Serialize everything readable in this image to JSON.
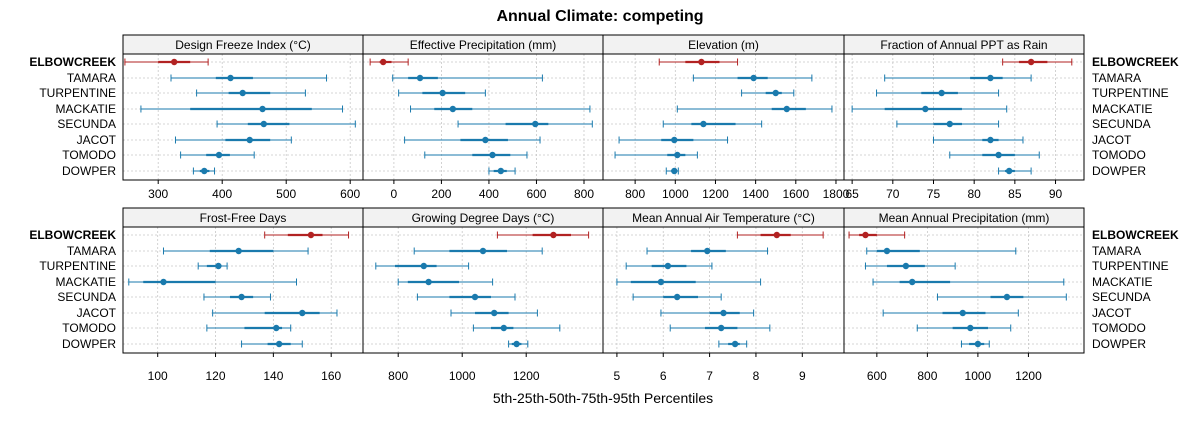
{
  "chart_data": {
    "type": "percentile-interval",
    "title": "Annual Climate: competing",
    "xlabel": "5th-25th-50th-75th-95th Percentiles",
    "sites": [
      "ELBOWCREEK",
      "TAMARA",
      "TURPENTINE",
      "MACKATIE",
      "SECUNDA",
      "JACOT",
      "TOMODO",
      "DOWPER"
    ],
    "highlight_site": "ELBOWCREEK",
    "highlight_color": "#b22222",
    "series_color": "#1a7aad",
    "panels": [
      {
        "title": "Design Freeze Index (°C)",
        "xlim": [
          245,
          620
        ],
        "ticks": [
          300,
          400,
          500,
          600
        ],
        "tick_labels": [
          "300",
          "400",
          "500",
          "600"
        ],
        "stats": [
          [
            248,
            300,
            325,
            350,
            378
          ],
          [
            320,
            390,
            413,
            448,
            563
          ],
          [
            360,
            410,
            432,
            475,
            530
          ],
          [
            273,
            350,
            463,
            540,
            588
          ],
          [
            392,
            440,
            465,
            505,
            608
          ],
          [
            327,
            405,
            443,
            475,
            508
          ],
          [
            335,
            375,
            395,
            412,
            450
          ],
          [
            355,
            365,
            372,
            380,
            388
          ]
        ]
      },
      {
        "title": "Effective Precipitation (mm)",
        "xlim": [
          -130,
          880
        ],
        "ticks": [
          0,
          200,
          400,
          600,
          800
        ],
        "tick_labels": [
          "0",
          "200",
          "400",
          "600",
          "800"
        ],
        "stats": [
          [
            -100,
            -60,
            -45,
            -10,
            60
          ],
          [
            -5,
            60,
            110,
            185,
            625
          ],
          [
            20,
            120,
            205,
            300,
            385
          ],
          [
            70,
            170,
            248,
            330,
            825
          ],
          [
            270,
            470,
            595,
            650,
            835
          ],
          [
            45,
            280,
            385,
            480,
            615
          ],
          [
            130,
            330,
            415,
            490,
            560
          ],
          [
            400,
            420,
            450,
            475,
            510
          ]
        ]
      },
      {
        "title": "Elevation (m)",
        "xlim": [
          640,
          1840
        ],
        "ticks": [
          800,
          1000,
          1200,
          1400,
          1600,
          1800
        ],
        "tick_labels": [
          "800",
          "1000",
          "1200",
          "1400",
          "1600",
          "1800"
        ],
        "stats": [
          [
            920,
            1050,
            1130,
            1220,
            1310
          ],
          [
            1090,
            1310,
            1390,
            1460,
            1680
          ],
          [
            1330,
            1450,
            1500,
            1530,
            1590
          ],
          [
            1010,
            1480,
            1555,
            1650,
            1780
          ],
          [
            940,
            1080,
            1140,
            1300,
            1430
          ],
          [
            720,
            930,
            995,
            1090,
            1260
          ],
          [
            700,
            960,
            1010,
            1050,
            1110
          ],
          [
            955,
            980,
            995,
            1005,
            1015
          ]
        ]
      },
      {
        "title": "Fraction of Annual PPT as Rain",
        "xlim": [
          64,
          93.5
        ],
        "ticks": [
          65,
          70,
          75,
          80,
          85,
          90
        ],
        "tick_labels": [
          "65",
          "70",
          "75",
          "80",
          "85",
          "90"
        ],
        "stats": [
          [
            83.5,
            85.5,
            87,
            89,
            92
          ],
          [
            69,
            79.5,
            82,
            83.5,
            87
          ],
          [
            68,
            73.5,
            76,
            78,
            83
          ],
          [
            65,
            69,
            74,
            78.5,
            84
          ],
          [
            70.5,
            75,
            77,
            78.5,
            83
          ],
          [
            75,
            81,
            82,
            83,
            86
          ],
          [
            77,
            81,
            83,
            85,
            88
          ],
          [
            83,
            83.8,
            84.3,
            85,
            87
          ]
        ]
      },
      {
        "title": "Frost-Free Days",
        "xlim": [
          88,
          171
        ],
        "ticks": [
          100,
          120,
          140,
          160
        ],
        "tick_labels": [
          "100",
          "120",
          "140",
          "160"
        ],
        "stats": [
          [
            137,
            145,
            153,
            157,
            166
          ],
          [
            102,
            118,
            128,
            140,
            152
          ],
          [
            114,
            117,
            121,
            122,
            124
          ],
          [
            90,
            95,
            102,
            120,
            148
          ],
          [
            116,
            125,
            129,
            133,
            139
          ],
          [
            119,
            137,
            150,
            156,
            162
          ],
          [
            117,
            130,
            141,
            143,
            146
          ],
          [
            129,
            138,
            142,
            146,
            150
          ]
        ]
      },
      {
        "title": "Growing Degree Days (°C)",
        "xlim": [
          690,
          1440
        ],
        "ticks": [
          800,
          1000,
          1200
        ],
        "tick_labels": [
          "800",
          "1000",
          "1200"
        ],
        "stats": [
          [
            1110,
            1220,
            1285,
            1340,
            1395
          ],
          [
            850,
            960,
            1065,
            1140,
            1250
          ],
          [
            730,
            790,
            880,
            920,
            1020
          ],
          [
            800,
            830,
            895,
            990,
            1095
          ],
          [
            860,
            960,
            1040,
            1090,
            1165
          ],
          [
            965,
            1040,
            1100,
            1145,
            1235
          ],
          [
            1035,
            1090,
            1130,
            1160,
            1305
          ],
          [
            1145,
            1155,
            1170,
            1185,
            1205
          ]
        ]
      },
      {
        "title": "Mean Annual Air Temperature (°C)",
        "xlim": [
          4.7,
          9.9
        ],
        "ticks": [
          5,
          6,
          7,
          8,
          9
        ],
        "tick_labels": [
          "5",
          "6",
          "7",
          "8",
          "9"
        ],
        "stats": [
          [
            7.6,
            8.1,
            8.45,
            8.75,
            9.45
          ],
          [
            5.65,
            6.6,
            6.95,
            7.35,
            8.25
          ],
          [
            5.2,
            5.75,
            6.1,
            6.5,
            7.05
          ],
          [
            5.0,
            5.3,
            5.95,
            6.7,
            8.1
          ],
          [
            5.35,
            6.0,
            6.3,
            6.75,
            7.25
          ],
          [
            5.95,
            7.0,
            7.3,
            7.65,
            7.95
          ],
          [
            6.15,
            6.9,
            7.25,
            7.6,
            8.3
          ],
          [
            7.2,
            7.4,
            7.55,
            7.65,
            7.8
          ]
        ]
      },
      {
        "title": "Mean Annual Precipitation (mm)",
        "xlim": [
          470,
          1420
        ],
        "ticks": [
          600,
          800,
          1000,
          1200
        ],
        "tick_labels": [
          "600",
          "800",
          "1000",
          "1200"
        ],
        "stats": [
          [
            490,
            530,
            555,
            600,
            710
          ],
          [
            560,
            600,
            640,
            770,
            1150
          ],
          [
            555,
            640,
            715,
            790,
            910
          ],
          [
            585,
            690,
            740,
            890,
            1340
          ],
          [
            840,
            1050,
            1115,
            1180,
            1350
          ],
          [
            625,
            860,
            940,
            1030,
            1160
          ],
          [
            760,
            900,
            970,
            1040,
            1130
          ],
          [
            935,
            965,
            1000,
            1025,
            1045
          ]
        ]
      }
    ]
  }
}
